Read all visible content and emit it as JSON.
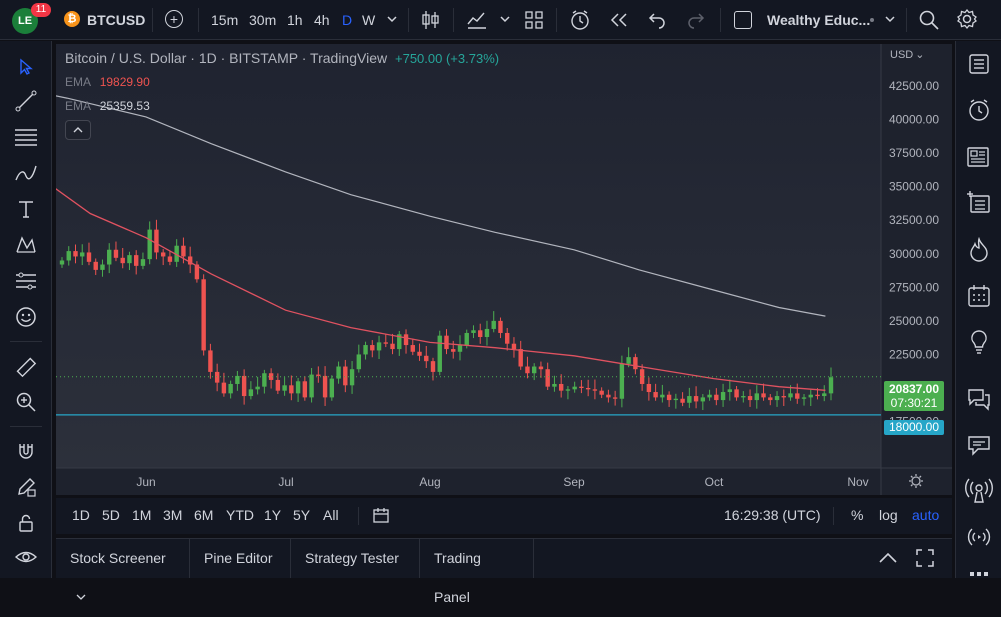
{
  "topbar": {
    "notification_count": "11",
    "symbol": "BTCUSD",
    "intervals": [
      "15m",
      "30m",
      "1h",
      "4h",
      "D",
      "W"
    ],
    "active_interval": "D",
    "layout_name": "Wealthy Educ..."
  },
  "legend": {
    "title": "Bitcoin / U.S. Dollar · 1D · BITSTAMP · TradingView",
    "change": "+750.00 (+3.73%)",
    "ema1_label": "EMA",
    "ema1_value": "19829.90",
    "ema2_label": "EMA",
    "ema2_value": "25359.53"
  },
  "price_axis": {
    "currency": "USD",
    "ticks": [
      "42500.00",
      "40000.00",
      "37500.00",
      "35000.00",
      "32500.00",
      "30000.00",
      "27500.00",
      "25000.00",
      "22500.00",
      "20000.00",
      "17500.00"
    ],
    "last_price": "20837.00",
    "countdown": "07:30:21",
    "hline_label": "18000.00"
  },
  "time_axis": {
    "labels": [
      "Jun",
      "Jul",
      "Aug",
      "Sep",
      "Oct",
      "Nov"
    ]
  },
  "bottombar": {
    "ranges": [
      "1D",
      "5D",
      "1M",
      "3M",
      "6M",
      "YTD",
      "1Y",
      "5Y",
      "All"
    ],
    "clock": "16:29:38 (UTC)",
    "percent": "%",
    "log": "log",
    "auto": "auto"
  },
  "panels": {
    "tabs": [
      "Stock Screener",
      "Pine Editor",
      "Strategy Tester",
      "Trading Panel"
    ]
  },
  "colors": {
    "up": "#26a69a",
    "up_candle": "#4caf50",
    "down": "#ef5350",
    "ema_fast": "#e05260",
    "ema_slow": "#b2b5be",
    "hline": "#22ab94",
    "hline_label_bg": "#26a6c8",
    "last_price_bg": "#4caf50",
    "accent": "#2962ff"
  },
  "chart_data": {
    "type": "candlestick",
    "title": "Bitcoin / U.S. Dollar · 1D · BITSTAMP · TradingView",
    "ylim": [
      16500,
      44000
    ],
    "y_ticks": [
      17500,
      20000,
      22500,
      25000,
      27500,
      30000,
      32500,
      35000,
      37500,
      40000,
      42500
    ],
    "x_labels": [
      "Jun",
      "Jul",
      "Aug",
      "Sep",
      "Oct",
      "Nov"
    ],
    "last_price": 20837,
    "horizontal_line": 18000,
    "ema_fast": [
      {
        "x": "2022-05-01",
        "y": 38000
      },
      {
        "x": "2022-05-10",
        "y": 35500
      },
      {
        "x": "2022-05-20",
        "y": 33000
      },
      {
        "x": "2022-06-01",
        "y": 31200
      },
      {
        "x": "2022-06-15",
        "y": 28500
      },
      {
        "x": "2022-07-01",
        "y": 25800
      },
      {
        "x": "2022-07-15",
        "y": 24500
      },
      {
        "x": "2022-08-01",
        "y": 23400
      },
      {
        "x": "2022-08-15",
        "y": 23000
      },
      {
        "x": "2022-09-01",
        "y": 22400
      },
      {
        "x": "2022-09-15",
        "y": 21600
      },
      {
        "x": "2022-10-01",
        "y": 20700
      },
      {
        "x": "2022-10-15",
        "y": 20100
      },
      {
        "x": "2022-10-25",
        "y": 19830
      }
    ],
    "ema_slow": [
      {
        "x": "2022-05-01",
        "y": 42600
      },
      {
        "x": "2022-05-15",
        "y": 41600
      },
      {
        "x": "2022-06-01",
        "y": 40200
      },
      {
        "x": "2022-06-15",
        "y": 38200
      },
      {
        "x": "2022-07-01",
        "y": 36100
      },
      {
        "x": "2022-07-15",
        "y": 34400
      },
      {
        "x": "2022-08-01",
        "y": 32800
      },
      {
        "x": "2022-08-15",
        "y": 31600
      },
      {
        "x": "2022-09-01",
        "y": 30300
      },
      {
        "x": "2022-09-15",
        "y": 28800
      },
      {
        "x": "2022-10-01",
        "y": 27300
      },
      {
        "x": "2022-10-15",
        "y": 26000
      },
      {
        "x": "2022-10-25",
        "y": 25360
      }
    ],
    "candles_close": [
      29500,
      30200,
      29800,
      30100,
      29400,
      28800,
      29200,
      30300,
      29700,
      29300,
      29900,
      29100,
      29600,
      31800,
      30100,
      29800,
      29400,
      30600,
      29800,
      29200,
      28100,
      22800,
      21200,
      20400,
      19600,
      20300,
      20900,
      19400,
      19900,
      20100,
      21100,
      20600,
      19800,
      20200,
      19600,
      20500,
      19300,
      21000,
      20900,
      19300,
      20700,
      21600,
      20200,
      21400,
      22500,
      23200,
      22800,
      23400,
      23300,
      22900,
      24000,
      23200,
      22700,
      22400,
      22000,
      21200,
      23900,
      22900,
      22700,
      23200,
      24100,
      24300,
      23800,
      24400,
      25000,
      24100,
      23300,
      22900,
      21600,
      21100,
      21600,
      21400,
      20100,
      20300,
      19800,
      19900,
      20100,
      20000,
      19900,
      19800,
      19500,
      19300,
      19200,
      21800,
      22300,
      21400,
      20300,
      19700,
      19300,
      19500,
      19100,
      19200,
      18900,
      19400,
      19000,
      19300,
      19500,
      19100,
      19700,
      19900,
      19300,
      19400,
      19100,
      19600,
      19300,
      19100,
      19400,
      19300,
      19600,
      19200,
      19300,
      19500,
      19400,
      19600,
      20800
    ]
  }
}
